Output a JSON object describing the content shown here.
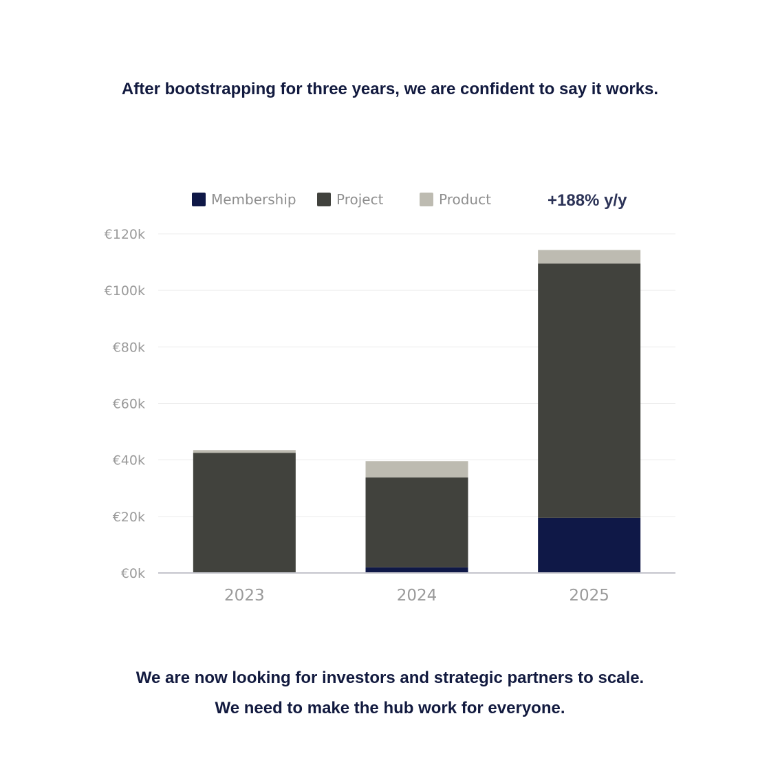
{
  "headline_top": "After bootstrapping for three years, we are confident to say it works.",
  "headline_bottom_1": "We are now looking for investors and strategic partners to scale.",
  "headline_bottom_2": "We need to make the hub work for everyone.",
  "growth_label": "+188% y/y",
  "colors": {
    "Membership": "#0f1847",
    "Project": "#41423d",
    "Product": "#bdbbb1",
    "gridline": "#ececec",
    "axis": "#c4c4cc",
    "headline": "#121a3f"
  },
  "chart_data": {
    "type": "bar",
    "stacked": true,
    "categories": [
      "2023",
      "2024",
      "2025"
    ],
    "series": [
      {
        "name": "Membership",
        "values": [
          0,
          2000,
          19500
        ]
      },
      {
        "name": "Project",
        "values": [
          42500,
          31800,
          90000
        ]
      },
      {
        "name": "Product",
        "values": [
          1000,
          5800,
          4800
        ]
      }
    ],
    "ylim": [
      0,
      120000
    ],
    "yticks": [
      0,
      20000,
      40000,
      60000,
      80000,
      100000,
      120000
    ],
    "ytick_labels": [
      "€0k",
      "€20k",
      "€40k",
      "€60k",
      "€80k",
      "€100k",
      "€120k"
    ],
    "legend_position": "top",
    "grid": true
  }
}
